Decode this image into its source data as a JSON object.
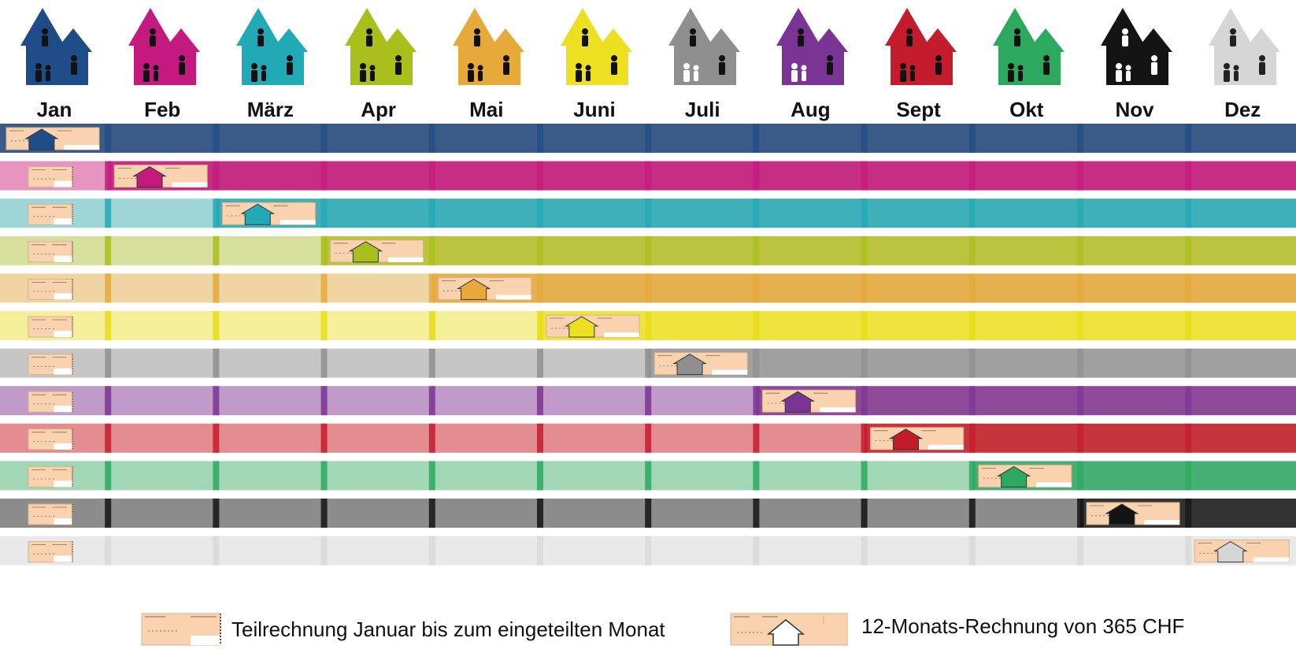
{
  "months": [
    {
      "label": "Jan",
      "color": "#1e4c87"
    },
    {
      "label": "Feb",
      "color": "#c41a7f"
    },
    {
      "label": "März",
      "color": "#21aab5"
    },
    {
      "label": "Apr",
      "color": "#a8bf1c"
    },
    {
      "label": "Mai",
      "color": "#e6a93a"
    },
    {
      "label": "Juni",
      "color": "#ece020"
    },
    {
      "label": "Juli",
      "color": "#8f8f8f"
    },
    {
      "label": "Aug",
      "color": "#7a3493"
    },
    {
      "label": "Sept",
      "color": "#c41c2c"
    },
    {
      "label": "Okt",
      "color": "#2ca95f"
    },
    {
      "label": "Nov",
      "color": "#141414"
    },
    {
      "label": "Dez",
      "color": "#d6d6d6"
    }
  ],
  "rows": [
    {
      "invoice_month": 1,
      "partial_color": "#e6a3bf",
      "full_color": "#3a5a87",
      "divider_color": "#1e4c87"
    },
    {
      "invoice_month": 2,
      "partial_color": "#e695bf",
      "full_color": "#c52e83",
      "divider_color": "#c41a7f"
    },
    {
      "invoice_month": 3,
      "partial_color": "#9ed6d7",
      "full_color": "#3fb0b9",
      "divider_color": "#21aab5"
    },
    {
      "invoice_month": 4,
      "partial_color": "#d7df9c",
      "full_color": "#bac43f",
      "divider_color": "#a8bf1c"
    },
    {
      "invoice_month": 5,
      "partial_color": "#f0d5a4",
      "full_color": "#e6b04e",
      "divider_color": "#e6a93a"
    },
    {
      "invoice_month": 6,
      "partial_color": "#f5ef9a",
      "full_color": "#efe43d",
      "divider_color": "#e8dc18"
    },
    {
      "invoice_month": 7,
      "partial_color": "#c6c6c6",
      "full_color": "#a0a0a0",
      "divider_color": "#8f8f8f"
    },
    {
      "invoice_month": 8,
      "partial_color": "#c09ac8",
      "full_color": "#8c4a98",
      "divider_color": "#7a3493"
    },
    {
      "invoice_month": 9,
      "partial_color": "#e38d91",
      "full_color": "#c6353c",
      "divider_color": "#c41c2c"
    },
    {
      "invoice_month": 10,
      "partial_color": "#a2d7b5",
      "full_color": "#45b072",
      "divider_color": "#2ca95f"
    },
    {
      "invoice_month": 11,
      "partial_color": "#8c8c8c",
      "full_color": "#333333",
      "divider_color": "#141414"
    },
    {
      "invoice_month": 12,
      "partial_color": "#e9e9e9",
      "full_color": "#e9e9e9",
      "divider_color": "#d9d9d9"
    }
  ],
  "invoice_color": "#f9d3b0",
  "legend": {
    "partial_label": "Teilrechnung Januar bis zum eingeteilten Monat",
    "full_label": "12-Monats-Rechnung von 365 CHF"
  }
}
